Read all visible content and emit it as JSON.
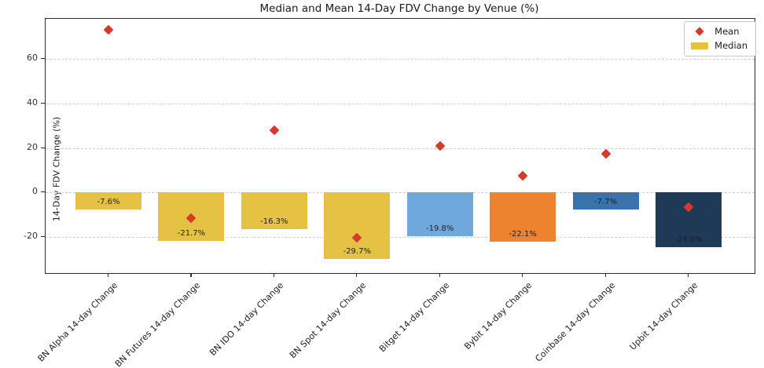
{
  "chart_data": {
    "type": "bar",
    "title": "Median and Mean 14-Day FDV Change by Venue (%)",
    "xlabel": "",
    "ylabel": "14-Day FDV Change (%)",
    "categories": [
      "BN Alpha 14-day Change",
      "BN Futures 14-day Change",
      "BN IDO 14-day Change",
      "BN Spot 14-day Change",
      "Bitget 14-day Change",
      "Bybit 14-day Change",
      "Coinbase 14-day Change",
      "Upbit 14-day Change"
    ],
    "series": [
      {
        "name": "Median",
        "type": "bar",
        "values": [
          -7.6,
          -21.7,
          -16.3,
          -29.7,
          -19.8,
          -22.1,
          -7.7,
          -24.6
        ],
        "labels": [
          "-7.6%",
          "-21.7%",
          "-16.3%",
          "-29.7%",
          "-19.8%",
          "-22.1%",
          "-7.7%",
          "-24.6%"
        ],
        "bar_colors": [
          "#E5C243",
          "#E5C243",
          "#E5C243",
          "#E5C243",
          "#6FA8DC",
          "#ED822F",
          "#3A72AC",
          "#1E3A56"
        ]
      },
      {
        "name": "Mean",
        "type": "scatter",
        "marker": "diamond",
        "color": "#D63A2A",
        "values": [
          73,
          -11.5,
          28,
          -20.3,
          21,
          7.5,
          17.5,
          -6.5
        ]
      }
    ],
    "yticks": [
      -20,
      0,
      20,
      40,
      60
    ],
    "ylim": [
      -36.2,
      78
    ],
    "grid": "dashed-horizontal",
    "legend_position": "upper-right",
    "legend_swatch_color": "#E5C243",
    "gridline_color": "#cfcfcf"
  }
}
